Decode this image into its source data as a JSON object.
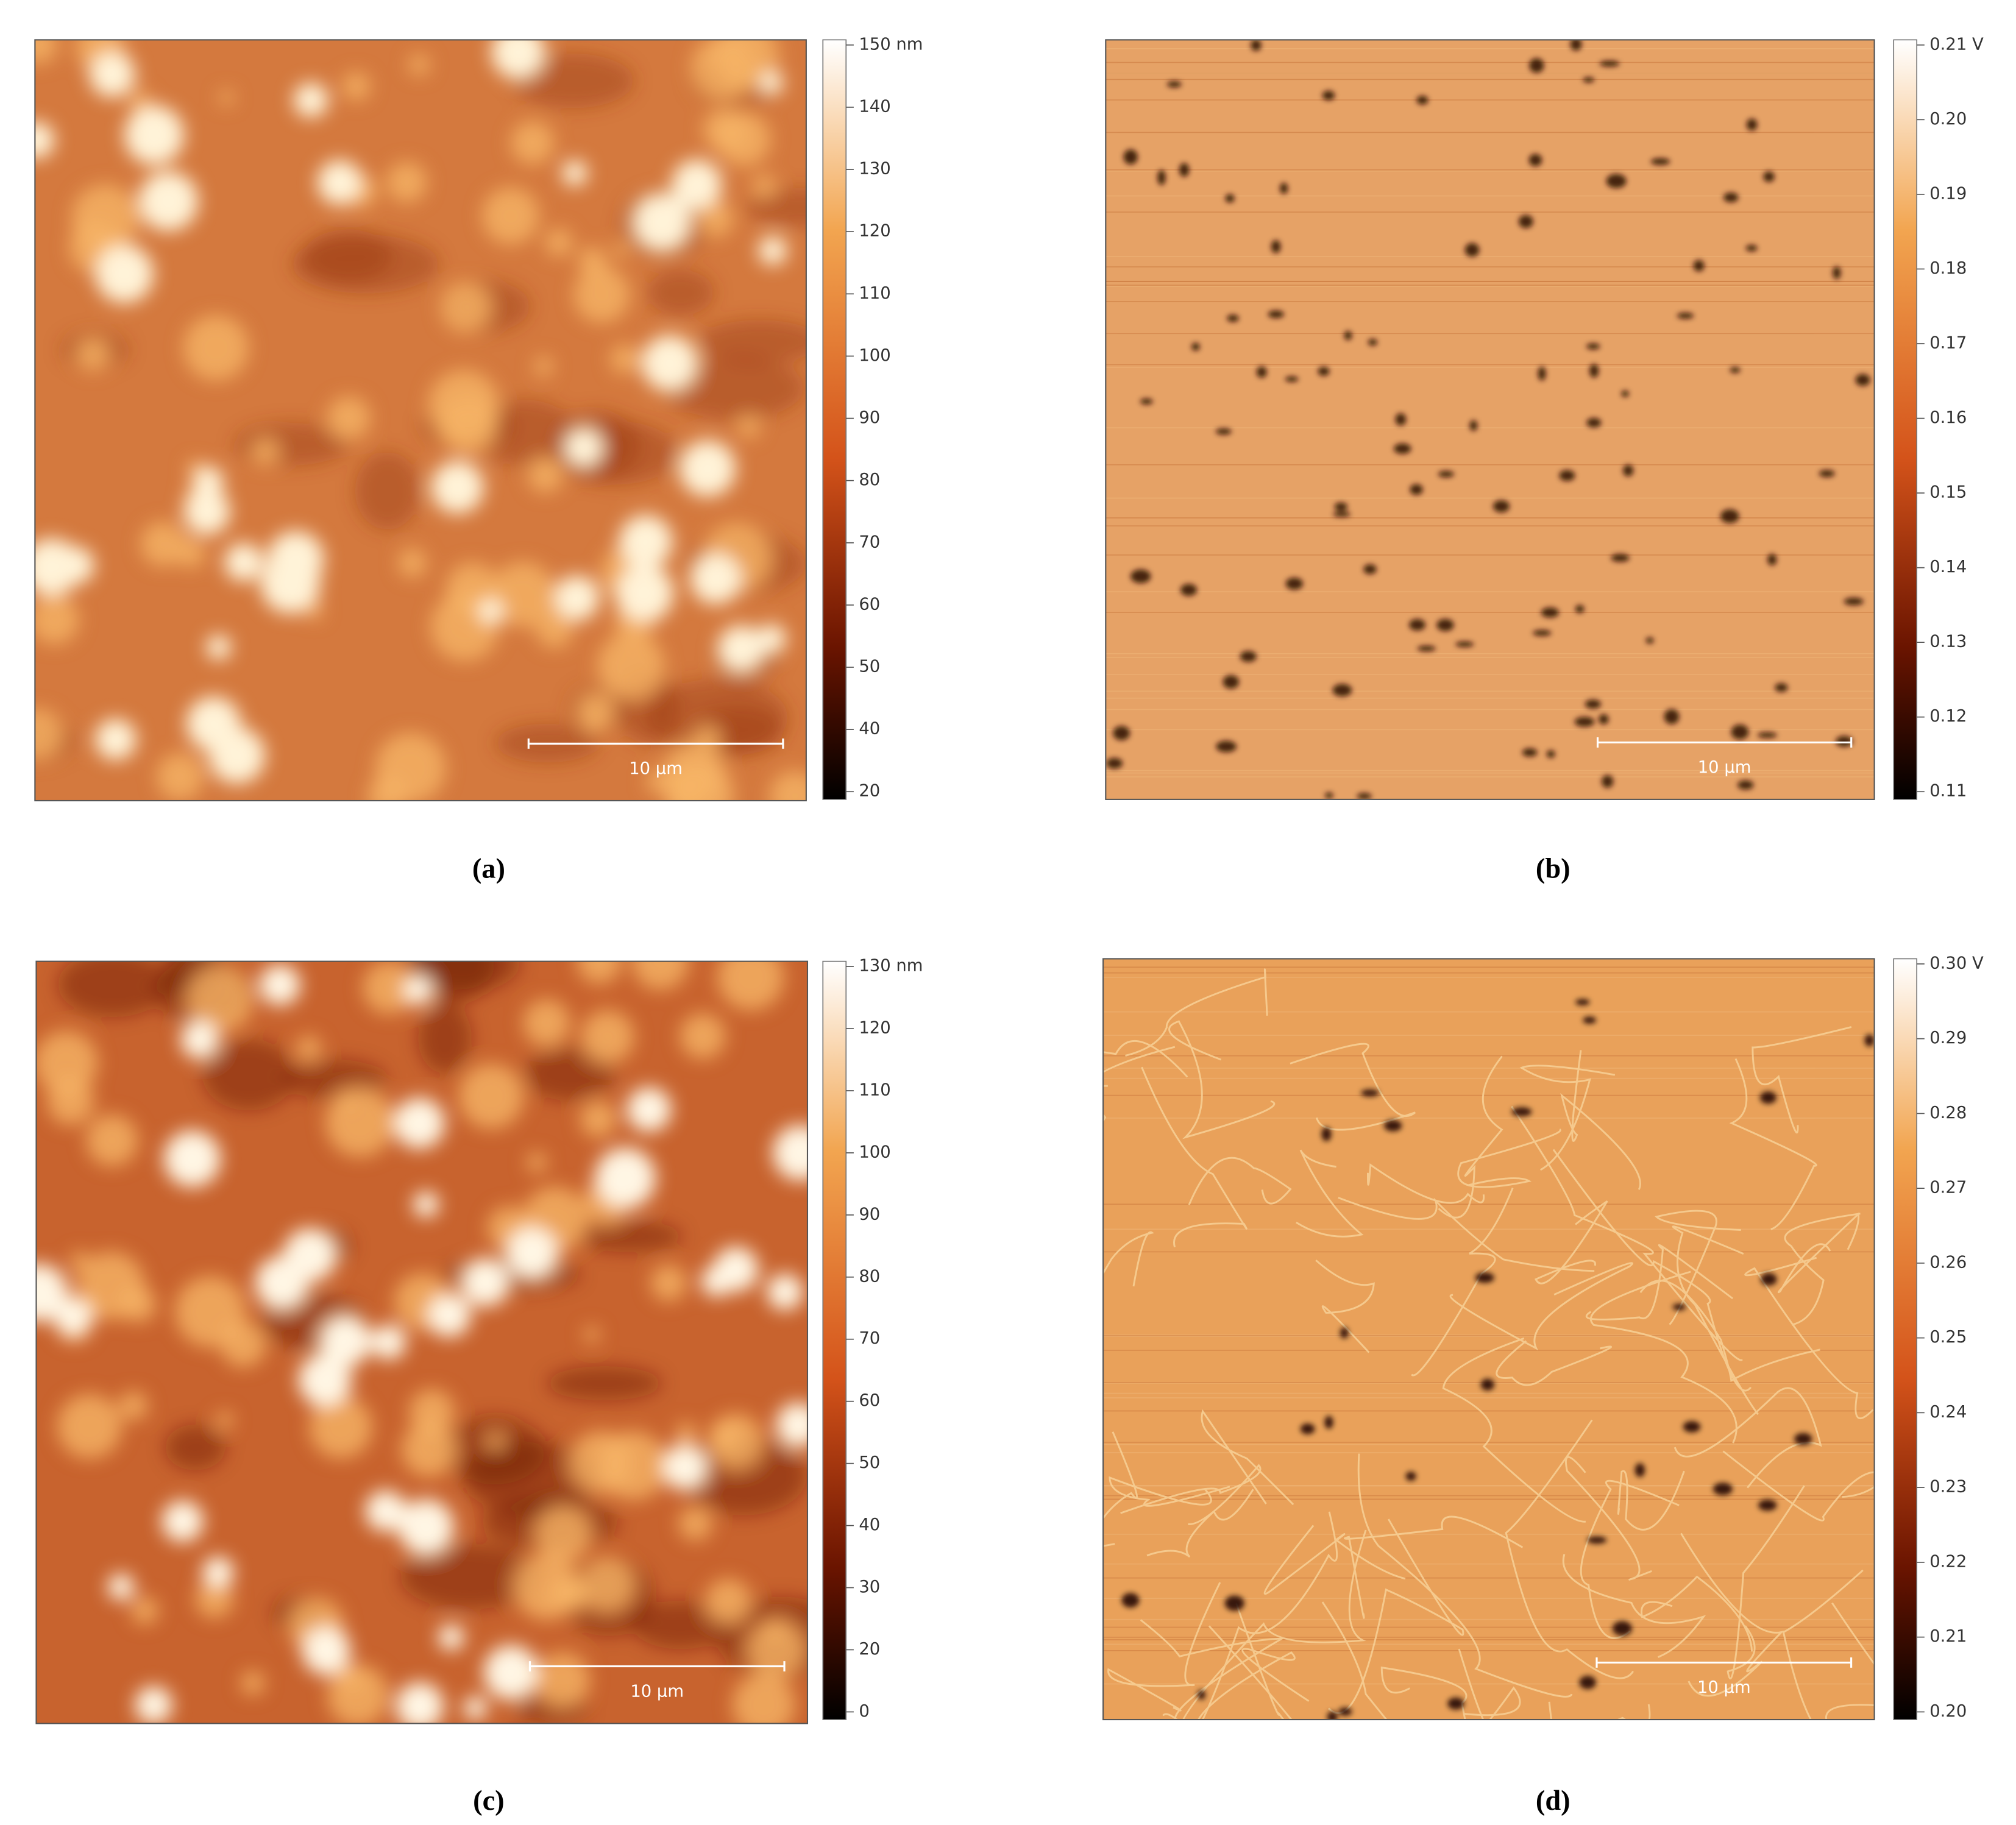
{
  "panels": [
    {
      "label": "(a)",
      "scale_bar": "10 µm",
      "colorbar_ticks": [
        "150 nm",
        "140",
        "130",
        "120",
        "110",
        "100",
        "90",
        "80",
        "70",
        "60",
        "50",
        "40",
        "20"
      ]
    },
    {
      "label": "(b)",
      "scale_bar": "10 µm",
      "colorbar_ticks": [
        "0.21 V",
        "0.20",
        "0.19",
        "0.18",
        "0.17",
        "0.16",
        "0.15",
        "0.14",
        "0.13",
        "0.12",
        "0.11"
      ]
    },
    {
      "label": "(c)",
      "scale_bar": "10 µm",
      "colorbar_ticks": [
        "130 nm",
        "120",
        "110",
        "100",
        "90",
        "80",
        "70",
        "60",
        "50",
        "40",
        "30",
        "20",
        "0"
      ]
    },
    {
      "label": "(d)",
      "scale_bar": "10 µm",
      "colorbar_ticks": [
        "0.30 V",
        "0.29",
        "0.28",
        "0.27",
        "0.26",
        "0.25",
        "0.24",
        "0.23",
        "0.22",
        "0.21",
        "0.20"
      ]
    }
  ]
}
